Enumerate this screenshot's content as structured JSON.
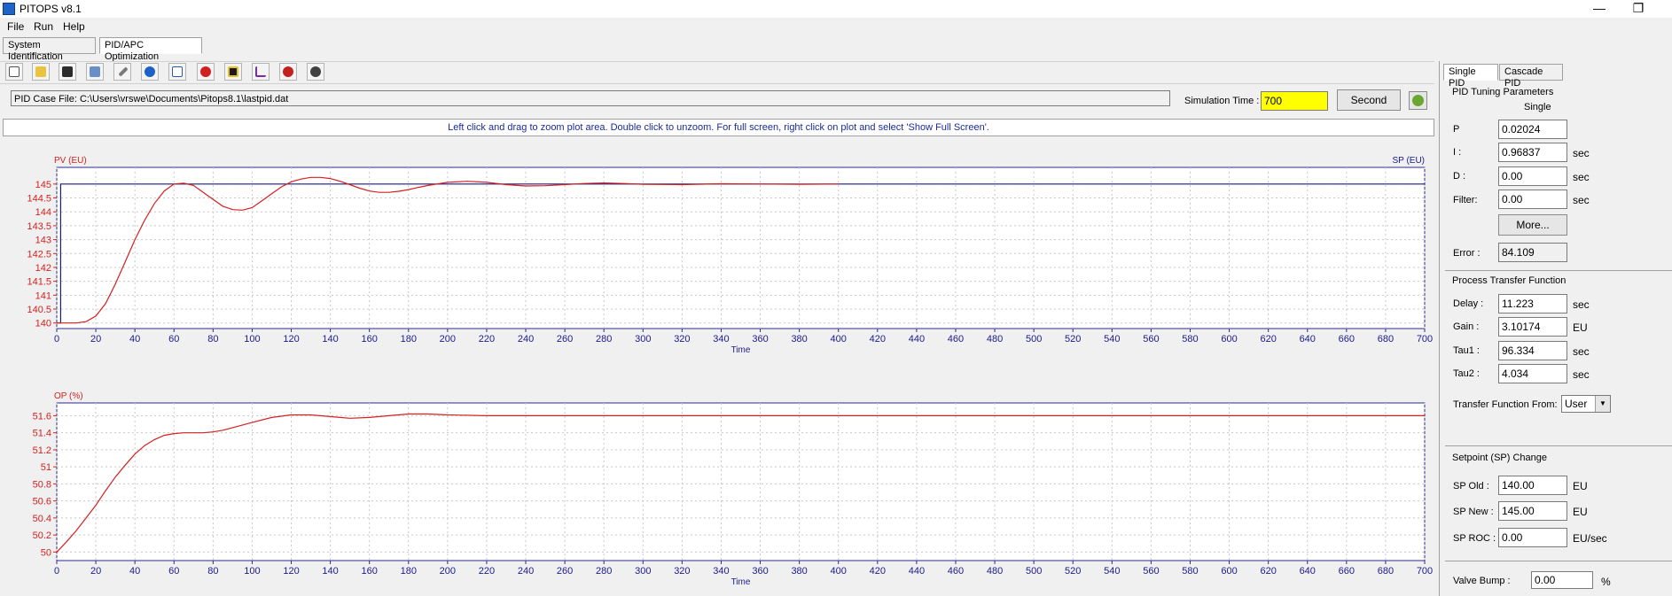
{
  "window": {
    "title": "PITOPS v8.1",
    "minimize": "—",
    "restore": "❐"
  },
  "menu": [
    "File",
    "Run",
    "Help"
  ],
  "main_tabs": [
    "System Identification",
    "PID/APC Optimization"
  ],
  "toolbar_icons": [
    "new-icon",
    "open-icon",
    "save-icon",
    "print-icon",
    "edit-icon",
    "help-icon",
    "chart-icon",
    "s-icon",
    "wave-icon",
    "step-icon",
    "r-icon",
    "m-icon"
  ],
  "case_file": "PID Case File: C:\\Users\\vrswe\\Documents\\Pitops8.1\\lastpid.dat",
  "simulation": {
    "label": "Simulation Time :",
    "value": "700",
    "unit_button": "Second"
  },
  "info_text": "Left click and drag to zoom plot area. Double click to unzoom. For full screen, right click on plot and select 'Show Full Screen'.",
  "chart_data": [
    {
      "type": "line",
      "ylabel": "PV (EU)",
      "y2label": "SP (EU)",
      "xlabel": "Time",
      "xlim": [
        0,
        700
      ],
      "ylim": [
        139.8,
        145.6
      ],
      "x_ticks": [
        0,
        20,
        40,
        60,
        80,
        100,
        120,
        140,
        160,
        180,
        200,
        220,
        240,
        260,
        280,
        300,
        320,
        340,
        360,
        380,
        400,
        420,
        440,
        460,
        480,
        500,
        520,
        540,
        560,
        580,
        600,
        620,
        640,
        660,
        680,
        700
      ],
      "y_ticks": [
        140,
        140.5,
        141,
        141.5,
        142,
        142.5,
        143,
        143.5,
        144,
        144.5,
        145
      ],
      "y_tick_labels": [
        "140",
        "140.5",
        "141",
        "141.5",
        "142",
        "142.5",
        "143",
        "143.5",
        "144",
        "144.5",
        "145"
      ],
      "series": [
        {
          "name": "SP (EU)",
          "color": "#1a1a8c",
          "x": [
            0,
            2,
            2,
            700
          ],
          "y": [
            140,
            140,
            145,
            145
          ]
        },
        {
          "name": "PV (EU)",
          "color": "#d42020",
          "x": [
            0,
            10,
            15,
            20,
            25,
            30,
            35,
            40,
            45,
            50,
            55,
            60,
            65,
            70,
            75,
            80,
            85,
            90,
            95,
            100,
            105,
            110,
            115,
            120,
            125,
            130,
            135,
            140,
            145,
            150,
            155,
            160,
            165,
            170,
            175,
            180,
            185,
            190,
            200,
            210,
            220,
            230,
            240,
            250,
            260,
            270,
            280,
            290,
            300,
            320,
            340,
            360,
            380,
            400
          ],
          "y": [
            140,
            140,
            140.05,
            140.25,
            140.7,
            141.4,
            142.2,
            143.0,
            143.7,
            144.3,
            144.75,
            145.0,
            145.03,
            144.95,
            144.7,
            144.45,
            144.2,
            144.08,
            144.06,
            144.15,
            144.4,
            144.65,
            144.9,
            145.08,
            145.18,
            145.24,
            145.24,
            145.2,
            145.1,
            144.98,
            144.85,
            144.75,
            144.7,
            144.7,
            144.74,
            144.8,
            144.88,
            144.95,
            145.06,
            145.1,
            145.06,
            144.98,
            144.93,
            144.94,
            144.98,
            145.02,
            145.04,
            145.02,
            144.99,
            144.98,
            145.01,
            145.0,
            144.99,
            145.0
          ]
        }
      ]
    },
    {
      "type": "line",
      "ylabel": "OP (%)",
      "xlabel": "Time",
      "xlim": [
        0,
        700
      ],
      "ylim": [
        49.9,
        51.75
      ],
      "x_ticks": [
        0,
        20,
        40,
        60,
        80,
        100,
        120,
        140,
        160,
        180,
        200,
        220,
        240,
        260,
        280,
        300,
        320,
        340,
        360,
        380,
        400,
        420,
        440,
        460,
        480,
        500,
        520,
        540,
        560,
        580,
        600,
        620,
        640,
        660,
        680,
        700
      ],
      "y_ticks": [
        50,
        50.2,
        50.4,
        50.6,
        50.8,
        51,
        51.2,
        51.4,
        51.6
      ],
      "y_tick_labels": [
        "50",
        "50.2",
        "50.4",
        "50.6",
        "50.8",
        "51",
        "51.2",
        "51.4",
        "51.6"
      ],
      "series": [
        {
          "name": "",
          "color": "#d42020",
          "x": [
            0,
            5,
            10,
            15,
            20,
            25,
            30,
            35,
            40,
            45,
            50,
            55,
            60,
            65,
            70,
            75,
            80,
            85,
            90,
            100,
            110,
            120,
            130,
            140,
            150,
            160,
            170,
            180,
            190,
            200,
            220,
            240,
            260,
            280,
            300,
            700
          ],
          "y": [
            50,
            50.12,
            50.25,
            50.4,
            50.55,
            50.72,
            50.88,
            51.02,
            51.15,
            51.25,
            51.32,
            51.37,
            51.39,
            51.4,
            51.4,
            51.4,
            51.41,
            51.43,
            51.46,
            51.52,
            51.58,
            51.61,
            51.61,
            51.59,
            51.57,
            51.58,
            51.6,
            51.62,
            51.62,
            51.61,
            51.6,
            51.6,
            51.6,
            51.6,
            51.6,
            51.6
          ]
        }
      ]
    }
  ],
  "panel": {
    "tabs": [
      "Single PID",
      "Cascade PID"
    ],
    "tuning": {
      "title": "PID Tuning Parameters",
      "mode": "Single",
      "p_label": "P",
      "p_value": "0.02024",
      "i_label": "I   :",
      "i_value": "0.96837",
      "i_unit": "sec",
      "d_label": "D :",
      "d_value": "0.00",
      "d_unit": "sec",
      "filter_label": "Filter:",
      "filter_value": "0.00",
      "filter_unit": "sec",
      "more_button": "More...",
      "error_label": "Error :",
      "error_value": "84.109"
    },
    "process": {
      "title": "Process Transfer Function",
      "delay_label": "Delay :",
      "delay_value": "11.223",
      "delay_unit": "sec",
      "gain_label": "Gain :",
      "gain_value": "3.10174",
      "gain_unit": "EU",
      "tau1_label": "Tau1 :",
      "tau1_value": "96.334",
      "tau1_unit": "sec",
      "tau2_label": "Tau2 :",
      "tau2_value": "4.034",
      "tau2_unit": "sec",
      "tf_from_label": "Transfer Function From:",
      "tf_from_value": "User"
    },
    "setpoint": {
      "title": "Setpoint (SP) Change",
      "old_label": "SP Old :",
      "old_value": "140.00",
      "old_unit": "EU",
      "new_label": "SP New :",
      "new_value": "145.00",
      "new_unit": "EU",
      "roc_label": "SP ROC :",
      "roc_value": "0.00",
      "roc_unit": "EU/sec"
    },
    "valve": {
      "label": "Valve Bump :",
      "value": "0.00",
      "unit": "%"
    }
  }
}
